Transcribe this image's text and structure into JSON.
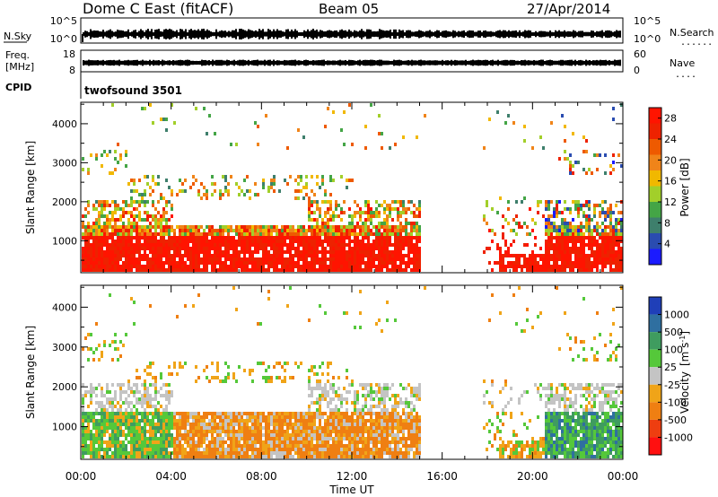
{
  "header": {
    "radar": "Dome C East (fitACF)",
    "beam": "Beam 05",
    "date": "27/Apr/2014"
  },
  "nsky_panel": {
    "left_label": "N.Sky",
    "right_label": "N.Search",
    "right_label_dots": "......",
    "ticks_left": [
      "10^5",
      "10^0"
    ],
    "ticks_right": [
      "10^5",
      "10^0"
    ]
  },
  "freq_panel": {
    "left_label": "Freq.",
    "left_unit": "[MHz]",
    "right_label": "Nave",
    "right_label_dots": "....",
    "ticks_left": [
      "18",
      "8"
    ],
    "ticks_right": [
      "60",
      "0"
    ]
  },
  "cpid_panel": {
    "label": "CPID",
    "program": "twofsound 3501"
  },
  "chart_data": [
    {
      "type": "heatmap",
      "name": "power",
      "ylabel": "Slant Range [km]",
      "ylim": [
        180,
        4550
      ],
      "y_ticks": [
        "1000",
        "2000",
        "3000",
        "4000"
      ],
      "xlim_hours": [
        0,
        24
      ],
      "x_ticks": [
        "00:00",
        "04:00",
        "08:00",
        "12:00",
        "16:00",
        "20:00",
        "00:00"
      ],
      "colorbar": {
        "label": "Power [dB]",
        "ticks": [
          "4",
          "8",
          "12",
          "16",
          "20",
          "24",
          "28"
        ],
        "range": [
          0,
          30
        ],
        "colors": [
          "#1b1bff",
          "#2a4cb0",
          "#3e7f6c",
          "#44a546",
          "#a2cf2a",
          "#f1b800",
          "#f08419",
          "#ee5a00",
          "#ee2200",
          "#ff1400"
        ]
      }
    },
    {
      "type": "heatmap",
      "name": "velocity",
      "ylabel": "Slant Range [km]",
      "ylim": [
        180,
        4550
      ],
      "y_ticks": [
        "1000",
        "2000",
        "3000",
        "4000"
      ],
      "xlim_hours": [
        0,
        24
      ],
      "x_ticks": [
        "00:00",
        "04:00",
        "08:00",
        "12:00",
        "16:00",
        "20:00",
        "00:00"
      ],
      "xlabel": "Time UT",
      "colorbar": {
        "label": "Velocity",
        "label_unit": "[m s",
        "label_unit_sup": "-1",
        "label_unit_close": "]",
        "ticks": [
          "1000",
          "500",
          "100",
          "25",
          "-25",
          "-100",
          "-500",
          "-1000"
        ],
        "colors": [
          "#1f3fb8",
          "#2f6fa0",
          "#3f9c5f",
          "#55c83a",
          "#c4c4c4",
          "#f0a418",
          "#ef7f12",
          "#ee3e10",
          "#ff1010"
        ]
      }
    }
  ]
}
